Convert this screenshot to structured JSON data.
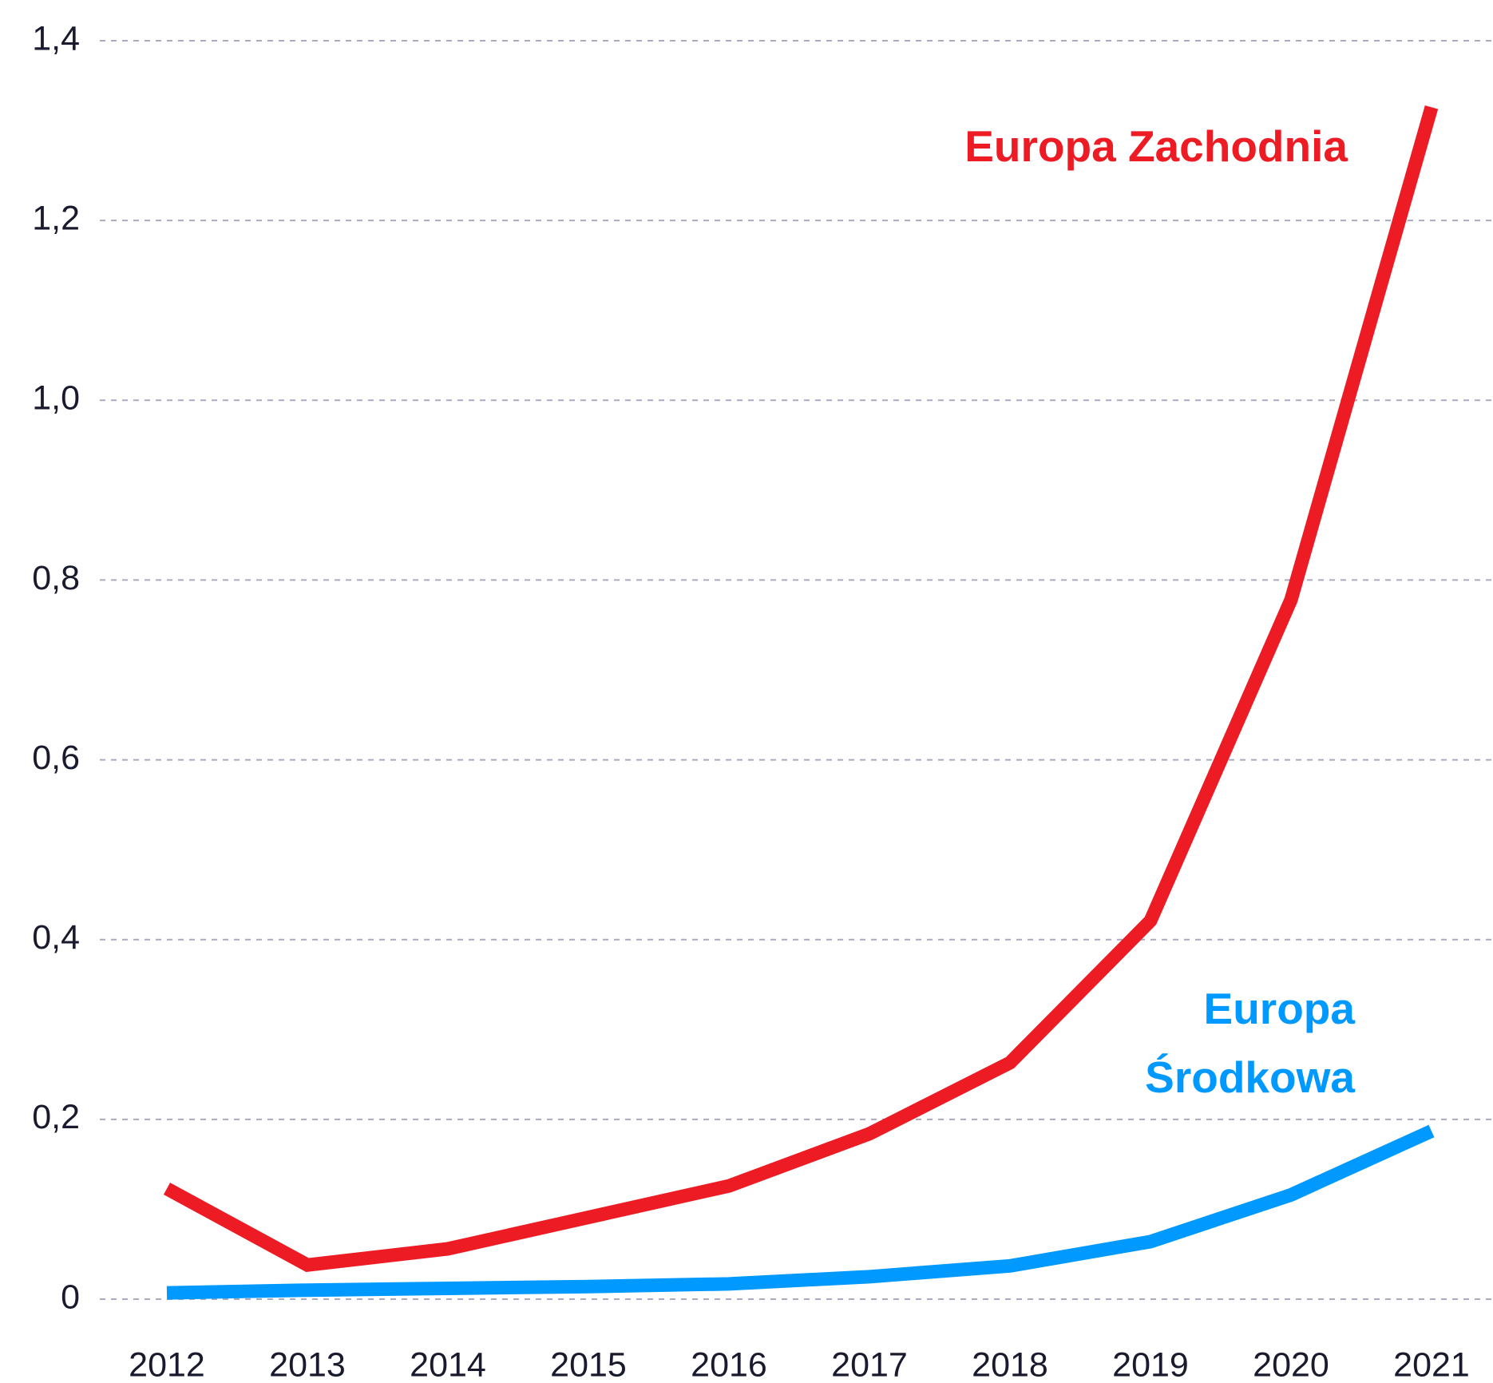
{
  "chart_data": {
    "type": "line",
    "x": [
      "2012",
      "2013",
      "2014",
      "2015",
      "2016",
      "2017",
      "2018",
      "2019",
      "2020",
      "2021"
    ],
    "series": [
      {
        "name": "Europa Zachodnia",
        "color": "#ed1c24",
        "values": [
          0.123,
          0.038,
          0.056,
          0.091,
          0.126,
          0.184,
          0.263,
          0.421,
          0.778,
          1.326
        ]
      },
      {
        "name": "Europa Środkowa",
        "color": "#0099ff",
        "values": [
          0.007,
          0.01,
          0.012,
          0.014,
          0.017,
          0.025,
          0.037,
          0.064,
          0.116,
          0.187
        ]
      }
    ],
    "ylim": [
      0,
      1.4
    ],
    "yticks": [
      0,
      {
        "value": 0.2,
        "label": "0,2"
      },
      {
        "value": 0.4,
        "label": "0,4"
      },
      {
        "value": 0.6,
        "label": "0,6"
      },
      {
        "value": 0.8,
        "label": "0,8"
      },
      {
        "value": 1.0,
        "label": "1,0"
      },
      {
        "value": 1.2,
        "label": "1,2"
      },
      {
        "value": 1.4,
        "label": "1,4"
      }
    ],
    "grid": true
  }
}
